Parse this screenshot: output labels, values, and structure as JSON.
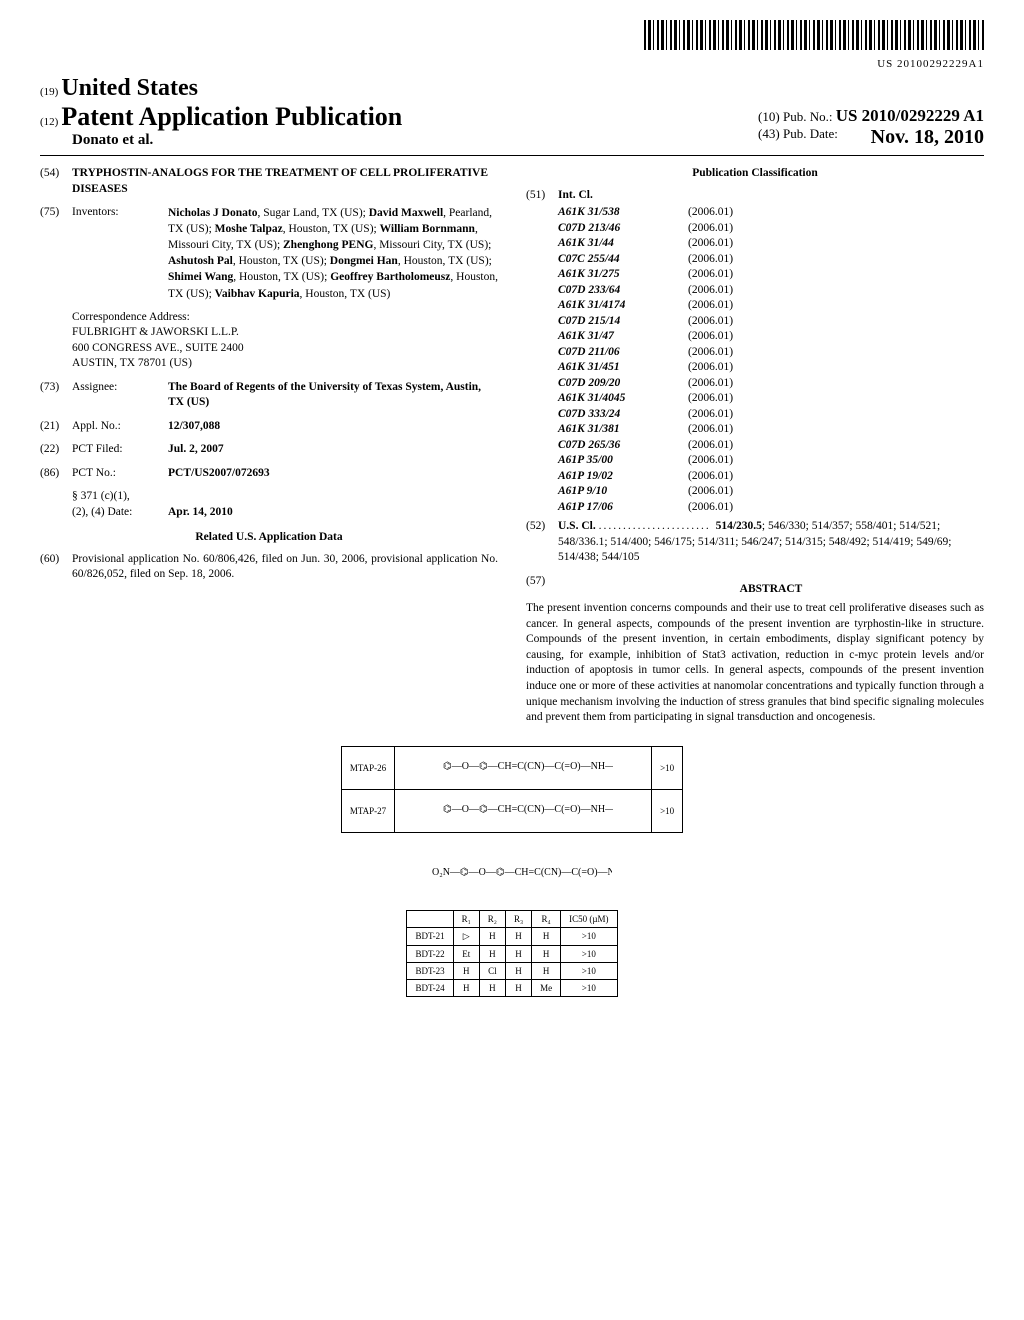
{
  "barcode_text": "US 20100292229A1",
  "header": {
    "jurisdiction_num": "(19)",
    "jurisdiction": "United States",
    "doc_type_num": "(12)",
    "doc_type": "Patent Application Publication",
    "authors": "Donato et al.",
    "pubno_num": "(10)",
    "pubno_label": "Pub. No.:",
    "pubno": "US 2010/0292229 A1",
    "pubdate_num": "(43)",
    "pubdate_label": "Pub. Date:",
    "pubdate": "Nov. 18, 2010"
  },
  "title_field": {
    "num": "(54)",
    "text": "TRYPHOSTIN-ANALOGS FOR THE TREATMENT OF CELL PROLIFERATIVE DISEASES"
  },
  "inventors_field": {
    "num": "(75)",
    "label": "Inventors:",
    "text": "Nicholas J Donato, Sugar Land, TX (US); David Maxwell, Pearland, TX (US); Moshe Talpaz, Houston, TX (US); William Bornmann, Missouri City, TX (US); Zhenghong PENG, Missouri City, TX (US); Ashutosh Pal, Houston, TX (US); Dongmei Han, Houston, TX (US); Shimei Wang, Houston, TX (US); Geoffrey Bartholomeusz, Houston, TX (US); Vaibhav Kapuria, Houston, TX (US)"
  },
  "correspondence": {
    "label": "Correspondence Address:",
    "lines": [
      "FULBRIGHT & JAWORSKI L.L.P.",
      "600 CONGRESS AVE., SUITE 2400",
      "AUSTIN, TX 78701 (US)"
    ]
  },
  "assignee": {
    "num": "(73)",
    "label": "Assignee:",
    "text": "The Board of Regents of the University of Texas System, Austin, TX (US)"
  },
  "applno": {
    "num": "(21)",
    "label": "Appl. No.:",
    "text": "12/307,088"
  },
  "pctfiled": {
    "num": "(22)",
    "label": "PCT Filed:",
    "text": "Jul. 2, 2007"
  },
  "pctno": {
    "num": "(86)",
    "label": "PCT No.:",
    "text": "PCT/US2007/072693"
  },
  "s371": {
    "label1": "§ 371 (c)(1),",
    "label2": "(2), (4) Date:",
    "text": "Apr. 14, 2010"
  },
  "related_head": "Related U.S. Application Data",
  "provisional": {
    "num": "(60)",
    "text": "Provisional application No. 60/806,426, filed on Jun. 30, 2006, provisional application No. 60/826,052, filed on Sep. 18, 2006."
  },
  "pubclass_head": "Publication Classification",
  "intcl": {
    "num": "(51)",
    "label": "Int. Cl.",
    "rows": [
      [
        "A61K 31/538",
        "(2006.01)"
      ],
      [
        "C07D 213/46",
        "(2006.01)"
      ],
      [
        "A61K 31/44",
        "(2006.01)"
      ],
      [
        "C07C 255/44",
        "(2006.01)"
      ],
      [
        "A61K 31/275",
        "(2006.01)"
      ],
      [
        "C07D 233/64",
        "(2006.01)"
      ],
      [
        "A61K 31/4174",
        "(2006.01)"
      ],
      [
        "C07D 215/14",
        "(2006.01)"
      ],
      [
        "A61K 31/47",
        "(2006.01)"
      ],
      [
        "C07D 211/06",
        "(2006.01)"
      ],
      [
        "A61K 31/451",
        "(2006.01)"
      ],
      [
        "C07D 209/20",
        "(2006.01)"
      ],
      [
        "A61K 31/4045",
        "(2006.01)"
      ],
      [
        "C07D 333/24",
        "(2006.01)"
      ],
      [
        "A61K 31/381",
        "(2006.01)"
      ],
      [
        "C07D 265/36",
        "(2006.01)"
      ],
      [
        "A61P 35/00",
        "(2006.01)"
      ],
      [
        "A61P 19/02",
        "(2006.01)"
      ],
      [
        "A61P 9/10",
        "(2006.01)"
      ],
      [
        "A61P 17/06",
        "(2006.01)"
      ]
    ]
  },
  "uscl": {
    "num": "(52)",
    "label": "U.S. Cl.",
    "lead": "514/230.5",
    "rest": "; 546/330; 514/357; 558/401; 514/521; 548/336.1; 514/400; 546/175; 514/311; 546/247; 514/315; 548/492; 514/419; 549/69; 514/438; 544/105"
  },
  "abstract": {
    "num": "(57)",
    "head": "ABSTRACT",
    "text": "The present invention concerns compounds and their use to treat cell proliferative diseases such as cancer. In general aspects, compounds of the present invention are tyrphostin-like in structure. Compounds of the present invention, in certain embodiments, display significant potency by causing, for example, inhibition of Stat3 activation, reduction in c-myc protein levels and/or induction of apoptosis in tumor cells. In general aspects, compounds of the present invention induce one or more of these activities at nanomolar concentrations and typically function through a unique mechanism involving the induction of stress granules that bind specific signaling molecules and prevent them from participating in signal transduction and oncogenesis."
  },
  "fig_top": {
    "rows": [
      {
        "id": "MTAP-26",
        "val": ">10"
      },
      {
        "id": "MTAP-27",
        "val": ">10"
      }
    ]
  },
  "fig_scaffold": "generic structure with R₁–R₄, CN, O₂N",
  "fig_bottom": {
    "headers": [
      "",
      "R₁",
      "R₂",
      "R₃",
      "R₄",
      "IC50 (µM)"
    ],
    "rows": [
      [
        "BDT-21",
        "▷",
        "H",
        "H",
        "H",
        ">10"
      ],
      [
        "BDT-22",
        "Et",
        "H",
        "H",
        "H",
        ">10"
      ],
      [
        "BDT-23",
        "H",
        "Cl",
        "H",
        "H",
        ">10"
      ],
      [
        "BDT-24",
        "H",
        "H",
        "H",
        "Me",
        ">10"
      ]
    ]
  }
}
